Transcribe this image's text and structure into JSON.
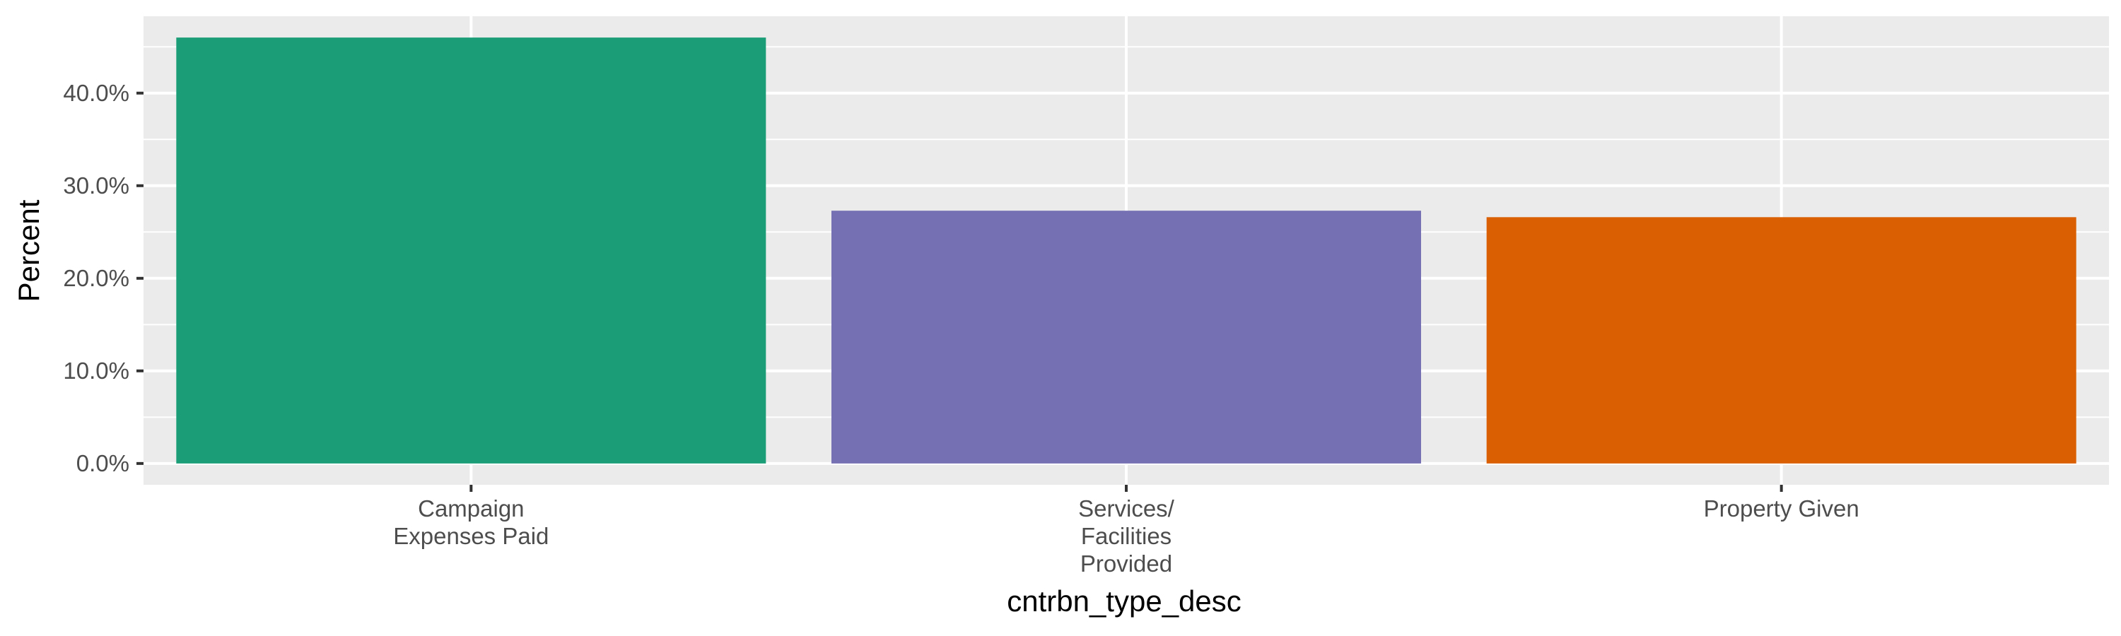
{
  "chart_data": {
    "type": "bar",
    "categories": [
      [
        "Campaign",
        "Expenses Paid"
      ],
      [
        "Services/",
        "Facilities",
        "Provided"
      ],
      [
        "Property Given"
      ]
    ],
    "values": [
      0.46,
      0.273,
      0.266
    ],
    "colors": [
      "#1b9e77",
      "#7570b3",
      "#d95f02"
    ],
    "title": "",
    "xlabel": "cntrbn_type_desc",
    "ylabel": "Percent",
    "ylim": [
      -0.023,
      0.483
    ],
    "y_ticks": [
      0,
      0.1,
      0.2,
      0.3,
      0.4
    ],
    "y_tick_labels": [
      "0.0%",
      "10.0%",
      "20.0%",
      "30.0%",
      "40.0%"
    ],
    "grid": true,
    "legend": "none",
    "panel_background": "#ebebeb",
    "grid_color": "#ffffff"
  }
}
